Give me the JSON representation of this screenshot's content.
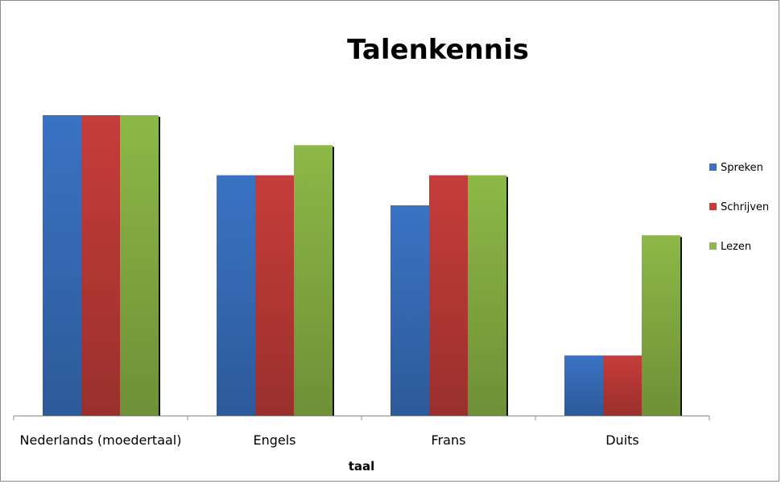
{
  "chart_data": {
    "type": "bar",
    "title": "Talenkennis",
    "xlabel": "taal",
    "ylabel": "",
    "categories": [
      "Nederlands (moedertaal)",
      "Engels",
      "Frans",
      "Duits"
    ],
    "series": [
      {
        "name": "Spreken",
        "values": [
          10,
          8,
          7,
          2
        ],
        "color": "#3a73c4"
      },
      {
        "name": "Schrijven",
        "values": [
          10,
          8,
          8,
          2
        ],
        "color": "#c63d3a"
      },
      {
        "name": "Lezen",
        "values": [
          10,
          9,
          8,
          6
        ],
        "color": "#8db846"
      }
    ],
    "ylim": [
      0,
      10
    ],
    "grid": false,
    "legend_position": "right"
  }
}
